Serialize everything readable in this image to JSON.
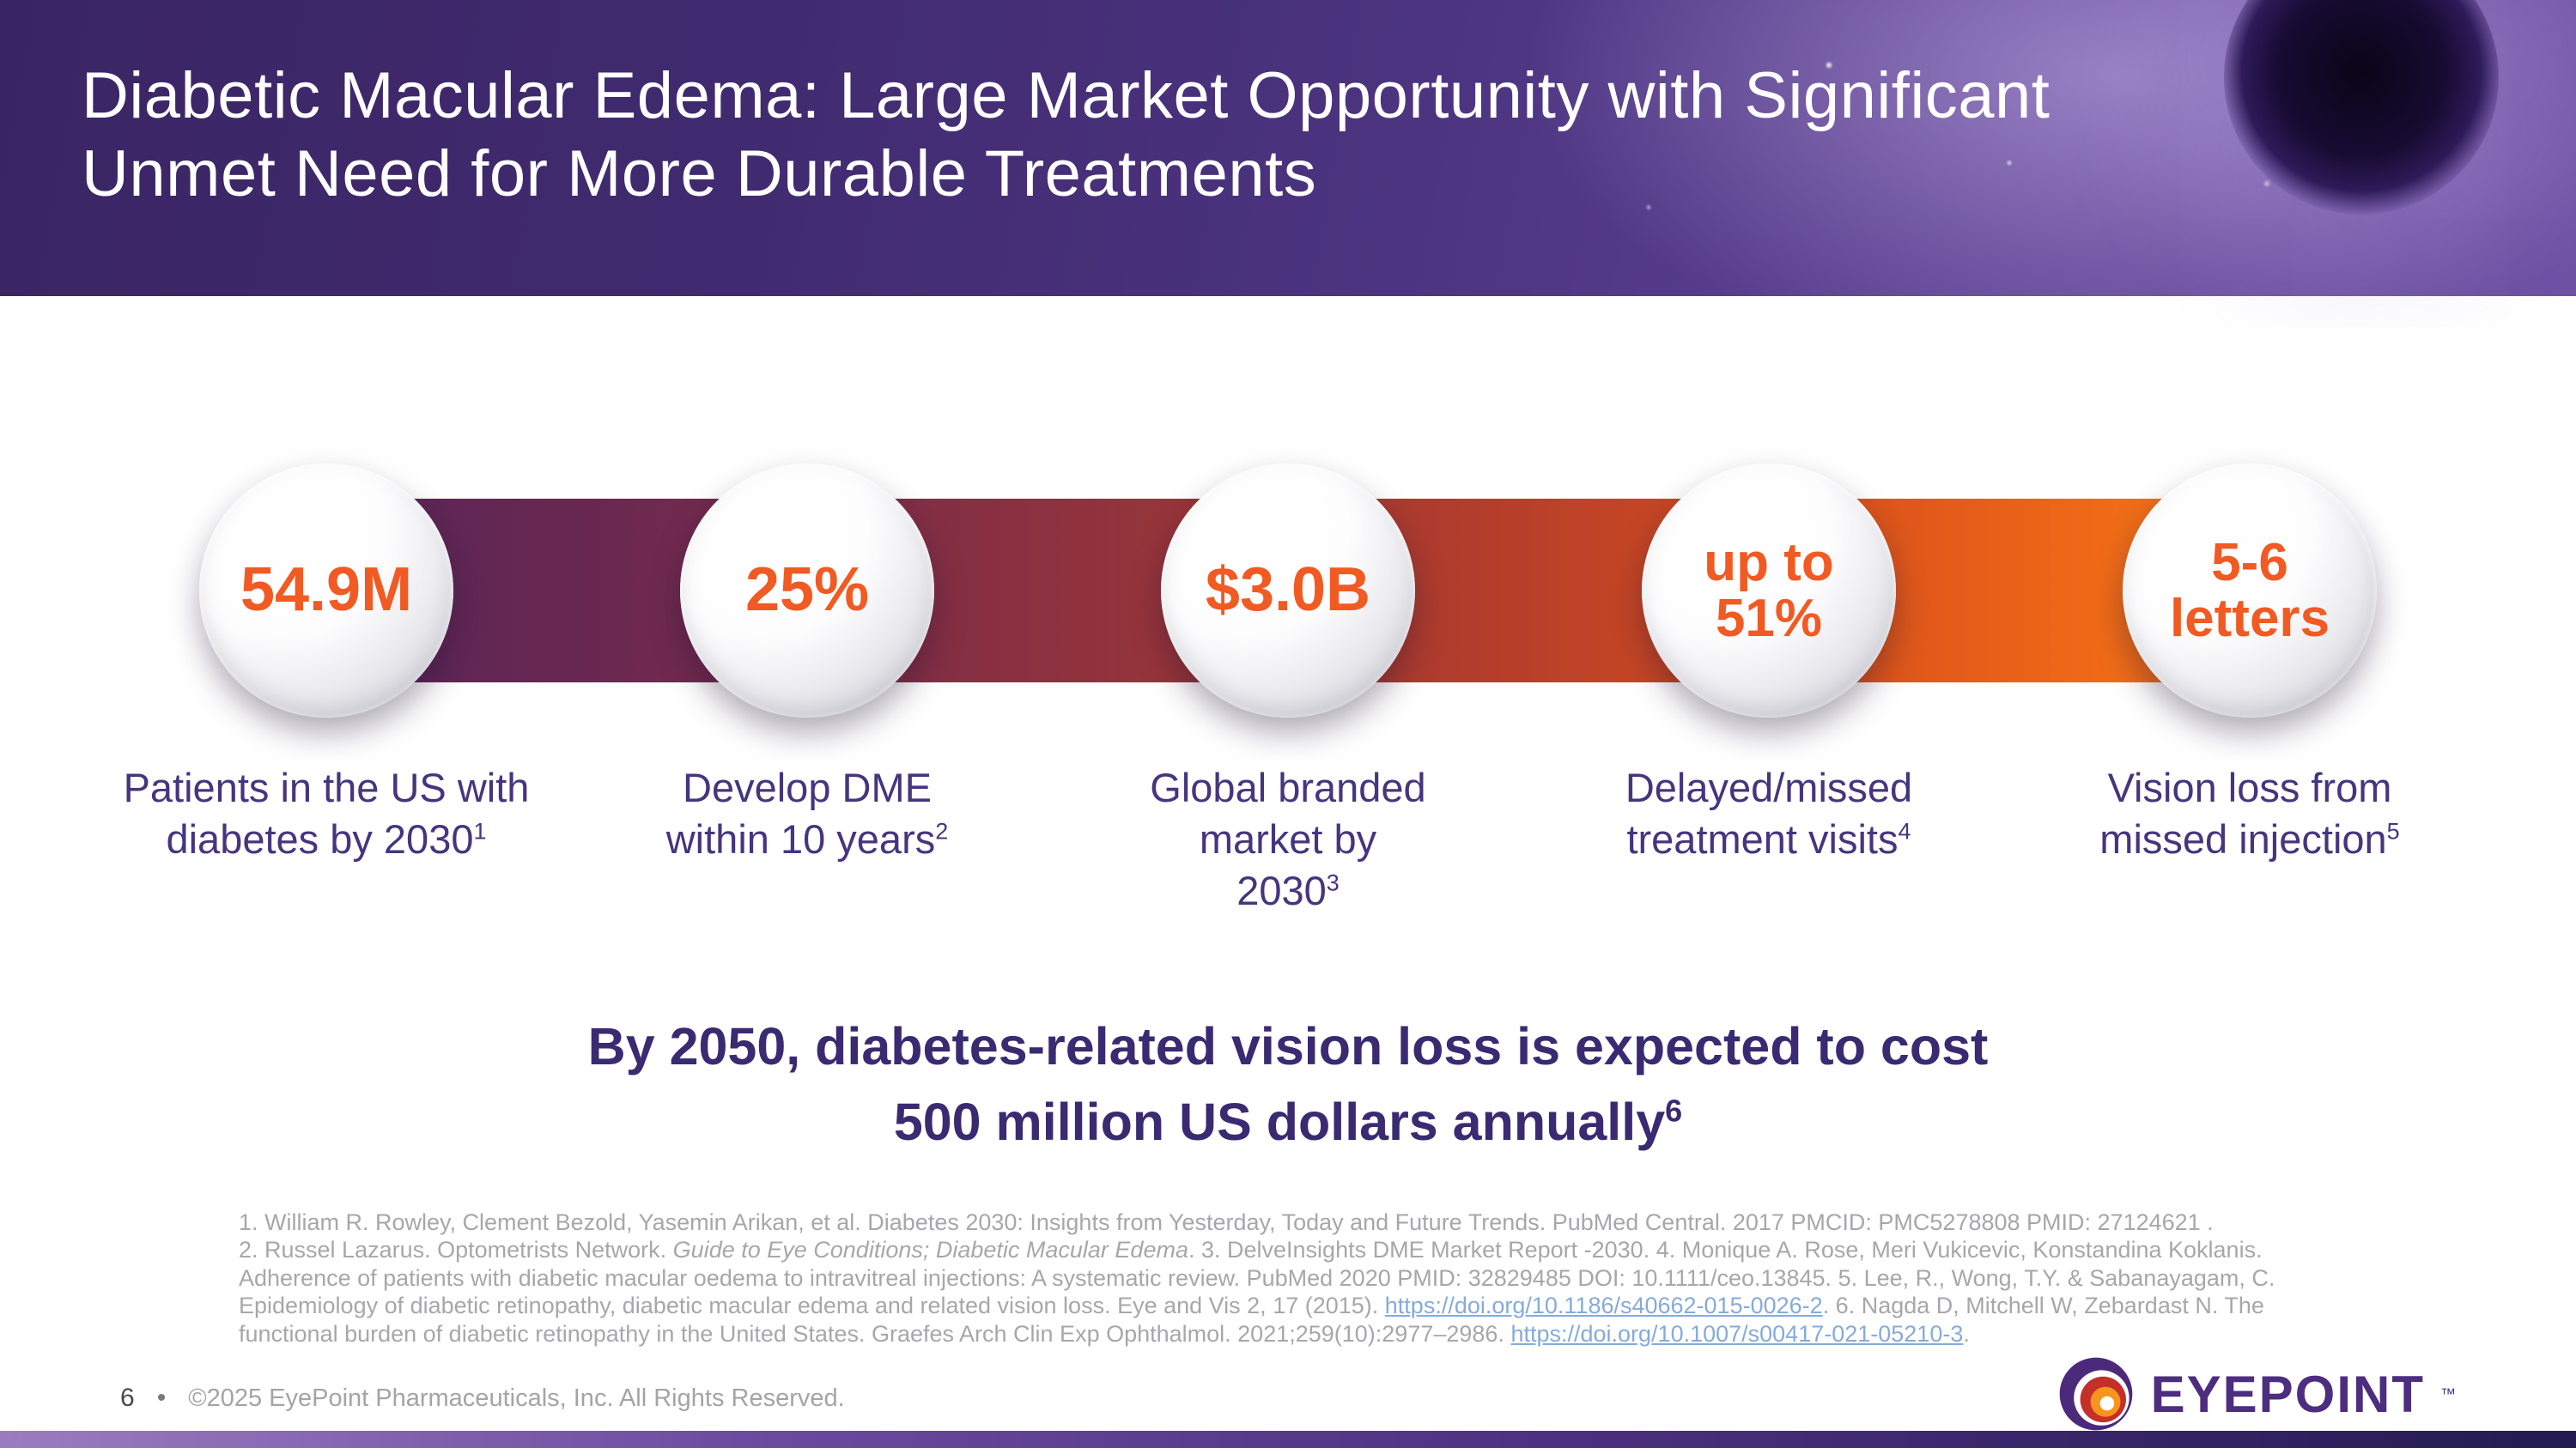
{
  "header": {
    "title": "Diabetic Macular Edema: Large Market Opportunity with Significant\nUnmet Need for More Durable Treatments"
  },
  "stats": [
    {
      "value": "54.9M",
      "label": "Patients in the US with\ndiabetes by 2030",
      "footnote": "1"
    },
    {
      "value": "25%",
      "label": "Develop DME\nwithin 10 years",
      "footnote": "2"
    },
    {
      "value": "$3.0B",
      "label": "Global branded\nmarket by\n2030",
      "footnote": "3"
    },
    {
      "value": "up to\n51%",
      "label": "Delayed/missed\ntreatment visits",
      "footnote": "4"
    },
    {
      "value": "5-6\nletters",
      "label": "Vision loss from\nmissed injection",
      "footnote": "5"
    }
  ],
  "headline": {
    "text": "By 2050, diabetes-related vision loss is expected to cost\n500 million US dollars annually",
    "footnote": "6"
  },
  "references": {
    "segments": [
      {
        "t": "1. William R. Rowley, Clement Bezold, Yasemin Arikan, et al. Diabetes 2030: Insights from Yesterday, Today and Future Trends. PubMed Central. 2017 PMCID: PMC5278808  PMID: 27124621 .\n2. Russel Lazarus. Optometrists Network. ",
        "s": "n"
      },
      {
        "t": "Guide to Eye Conditions; Diabetic Macular Edema",
        "s": "i"
      },
      {
        "t": ". 3. DelveInsights DME Market Report -2030. 4. Monique A. Rose, Meri Vukicevic, Konstandina Koklanis. Adherence of patients with diabetic macular oedema to intravitreal injections: A systematic review. PubMed 2020 PMID: 32829485 DOI: 10.1111/ceo.13845.  5. Lee, R., Wong, T.Y. & Sabanayagam, C. Epidemiology of diabetic retinopathy, diabetic macular edema and related vision loss. Eye and Vis 2, 17 (2015). ",
        "s": "n"
      },
      {
        "t": "https://doi.org/10.1186/s40662-015-0026-2",
        "s": "l"
      },
      {
        "t": ". 6. Nagda D, Mitchell W, Zebardast N. The functional burden of diabetic retinopathy in the United States. Graefes Arch Clin Exp Ophthalmol. 2021;259(10):2977–2986. ",
        "s": "n"
      },
      {
        "t": "https://doi.org/10.1007/s00417-021-05210-3",
        "s": "l"
      },
      {
        "t": ".",
        "s": "n"
      }
    ]
  },
  "footer": {
    "page_number": "6",
    "bullet": "•",
    "copyright": "©2025 EyePoint Pharmaceuticals, Inc. All Rights Reserved.",
    "logo_text": "EYEPOINT",
    "logo_tm": "™"
  },
  "colors": {
    "accent_orange": "#F15A22",
    "stat_label_purple": "#46357E",
    "headline_purple": "#3A2A72",
    "reference_gray": "#A8A6AB",
    "link_blue": "#85ABDB",
    "header_purple": "#4C3480"
  }
}
